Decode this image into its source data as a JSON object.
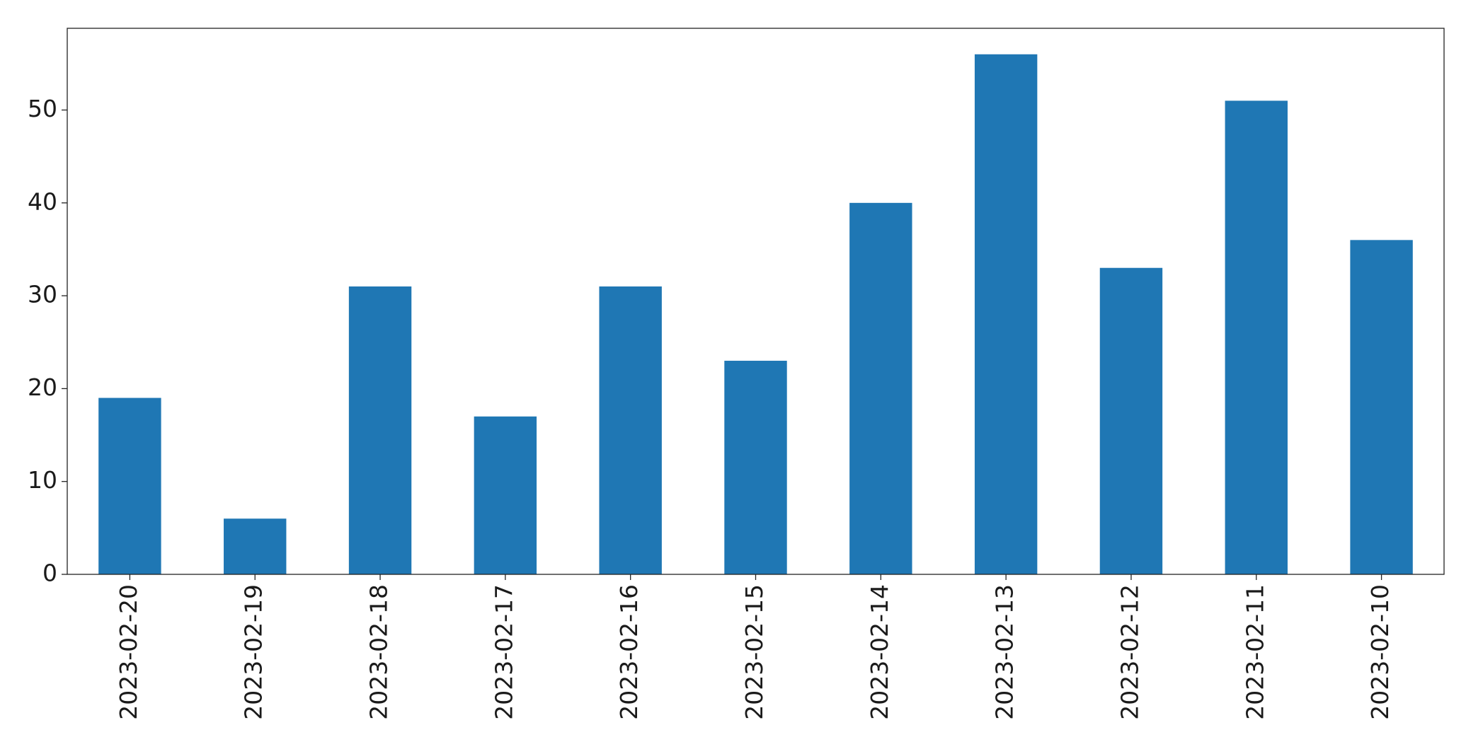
{
  "chart_data": {
    "type": "bar",
    "categories": [
      "2023-02-20",
      "2023-02-19",
      "2023-02-18",
      "2023-02-17",
      "2023-02-16",
      "2023-02-15",
      "2023-02-14",
      "2023-02-13",
      "2023-02-12",
      "2023-02-11",
      "2023-02-10"
    ],
    "values": [
      19,
      6,
      31,
      17,
      31,
      23,
      40,
      56,
      33,
      51,
      36
    ],
    "title": "",
    "xlabel": "",
    "ylabel": "",
    "ylim": [
      0,
      58.8
    ],
    "yticks": [
      0,
      10,
      20,
      30,
      40,
      50
    ],
    "bar_color": "#1f77b4",
    "grid": false,
    "legend": "none",
    "xtick_rotation": "vertical"
  }
}
